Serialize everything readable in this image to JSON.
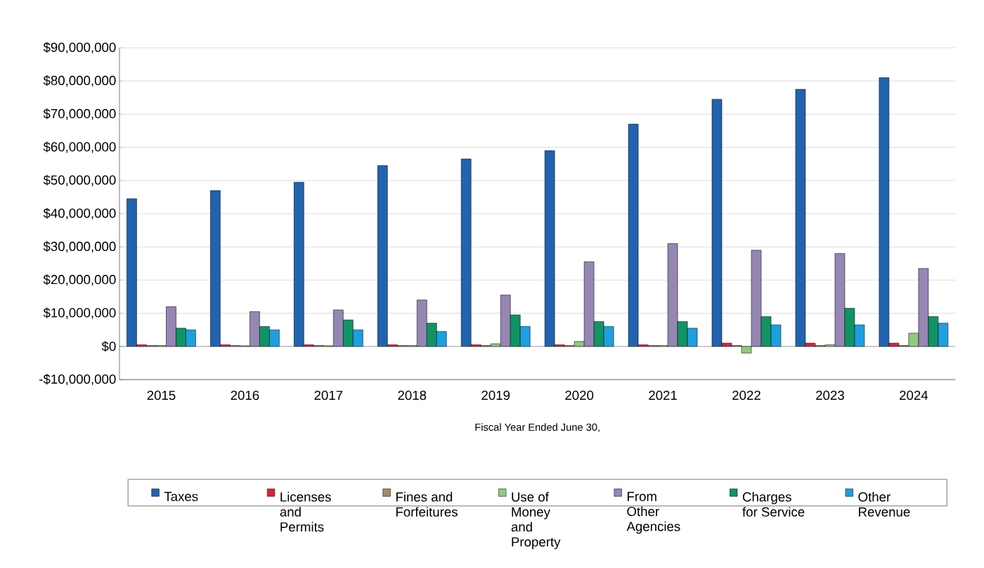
{
  "chart_data": {
    "type": "bar",
    "xlabel": "Fiscal Year Ended June 30,",
    "categories": [
      "2015",
      "2016",
      "2017",
      "2018",
      "2019",
      "2020",
      "2021",
      "2022",
      "2023",
      "2024"
    ],
    "series": [
      {
        "name": "Taxes",
        "color": "#2163ae",
        "values": [
          44500000,
          47000000,
          49500000,
          54500000,
          56500000,
          59000000,
          67000000,
          74500000,
          77500000,
          81000000
        ]
      },
      {
        "name": "Licenses and Permits",
        "color": "#e0203f",
        "values": [
          500000,
          500000,
          500000,
          500000,
          500000,
          500000,
          500000,
          1000000,
          1000000,
          1000000
        ]
      },
      {
        "name": "Fines and Forfeitures",
        "color": "#a58a68",
        "values": [
          300000,
          300000,
          300000,
          300000,
          300000,
          300000,
          300000,
          300000,
          300000,
          300000
        ]
      },
      {
        "name": "Use of Money and Property",
        "color": "#92c97f",
        "values": [
          300000,
          200000,
          200000,
          300000,
          800000,
          1500000,
          300000,
          -2000000,
          500000,
          4000000
        ]
      },
      {
        "name": "From Other Agencies",
        "color": "#9586b4",
        "values": [
          12000000,
          10500000,
          11000000,
          14000000,
          15500000,
          25500000,
          31000000,
          29000000,
          28000000,
          23500000
        ]
      },
      {
        "name": "Charges for Service",
        "color": "#119464",
        "values": [
          5500000,
          6000000,
          8000000,
          7000000,
          9500000,
          7500000,
          7500000,
          9000000,
          11500000,
          9000000
        ]
      },
      {
        "name": "Other Revenue",
        "color": "#1e9fe2",
        "values": [
          5000000,
          5000000,
          5000000,
          4500000,
          6000000,
          6000000,
          5500000,
          6500000,
          6500000,
          7000000
        ]
      }
    ],
    "ylim": [
      -10000000,
      90000000
    ],
    "yticks": [
      {
        "value": -10000000,
        "label": "-$10,000,000"
      },
      {
        "value": 0,
        "label": "$0"
      },
      {
        "value": 10000000,
        "label": "$10,000,000"
      },
      {
        "value": 20000000,
        "label": "$20,000,000"
      },
      {
        "value": 30000000,
        "label": "$30,000,000"
      },
      {
        "value": 40000000,
        "label": "$40,000,000"
      },
      {
        "value": 50000000,
        "label": "$50,000,000"
      },
      {
        "value": 60000000,
        "label": "$60,000,000"
      },
      {
        "value": 70000000,
        "label": "$70,000,000"
      },
      {
        "value": 80000000,
        "label": "$80,000,000"
      },
      {
        "value": 90000000,
        "label": "$90,000,000"
      }
    ],
    "grid": "y",
    "legend": "bottom"
  }
}
